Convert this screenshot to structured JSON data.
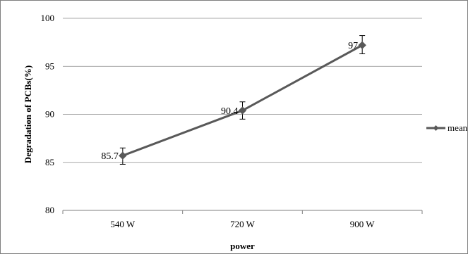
{
  "chart_data": {
    "type": "line",
    "categories": [
      "540 W",
      "720 W",
      "900 W"
    ],
    "series": [
      {
        "name": "mean",
        "values": [
          85.7,
          90.4,
          97.2
        ],
        "labels": [
          "85.7",
          "90.4",
          "97"
        ],
        "error_low": [
          84.8,
          89.5,
          96.3
        ],
        "error_high": [
          86.5,
          91.3,
          98.2
        ],
        "color": "#595959"
      }
    ],
    "xlabel": "power",
    "ylabel": "Degradation of PCBs(%)",
    "ylim": [
      80,
      100
    ],
    "yticks": [
      80,
      85,
      90,
      95,
      100
    ],
    "grid": true,
    "legend_position": "right"
  }
}
